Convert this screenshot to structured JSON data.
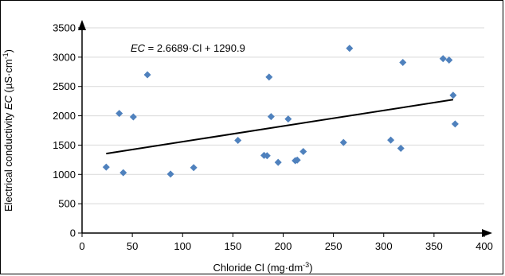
{
  "chart_data": {
    "type": "scatter",
    "xlabel": {
      "text": "Chloride Cl (mg·dm",
      "sup": "-3",
      "tail": ")"
    },
    "ylabel": {
      "pre": "Electrical conductivity ",
      "italic": "EC",
      "post": " (µS·cm",
      "sup": "-1",
      "tail": ")"
    },
    "xlim": [
      0,
      400
    ],
    "ylim": [
      0,
      3500
    ],
    "x_ticks": [
      0,
      50,
      100,
      150,
      200,
      250,
      300,
      350,
      400
    ],
    "y_ticks": [
      0,
      500,
      1000,
      1500,
      2000,
      2500,
      3000,
      3500
    ],
    "grid": "horizontal",
    "marker": "diamond",
    "marker_color": "#4f81bd",
    "trendline": {
      "slope": 2.6689,
      "intercept": 1290.9,
      "x_range": [
        24,
        369
      ],
      "color": "#000000",
      "label_italic": "EC",
      "label_rest": " = 2.6689·Cl + 1290.9"
    },
    "points": [
      {
        "x": 24,
        "y": 1125
      },
      {
        "x": 37,
        "y": 2040
      },
      {
        "x": 41,
        "y": 1030
      },
      {
        "x": 51,
        "y": 1980
      },
      {
        "x": 65,
        "y": 2700
      },
      {
        "x": 88,
        "y": 1005
      },
      {
        "x": 111,
        "y": 1115
      },
      {
        "x": 155,
        "y": 1580
      },
      {
        "x": 181,
        "y": 1325
      },
      {
        "x": 184,
        "y": 1320
      },
      {
        "x": 186,
        "y": 2660
      },
      {
        "x": 188,
        "y": 1985
      },
      {
        "x": 195,
        "y": 1205
      },
      {
        "x": 205,
        "y": 1945
      },
      {
        "x": 212,
        "y": 1235
      },
      {
        "x": 214,
        "y": 1245
      },
      {
        "x": 220,
        "y": 1390
      },
      {
        "x": 260,
        "y": 1545
      },
      {
        "x": 266,
        "y": 3150
      },
      {
        "x": 307,
        "y": 1585
      },
      {
        "x": 317,
        "y": 1445
      },
      {
        "x": 319,
        "y": 2910
      },
      {
        "x": 359,
        "y": 2975
      },
      {
        "x": 365,
        "y": 2950
      },
      {
        "x": 369,
        "y": 2350
      },
      {
        "x": 371,
        "y": 1860
      }
    ]
  }
}
